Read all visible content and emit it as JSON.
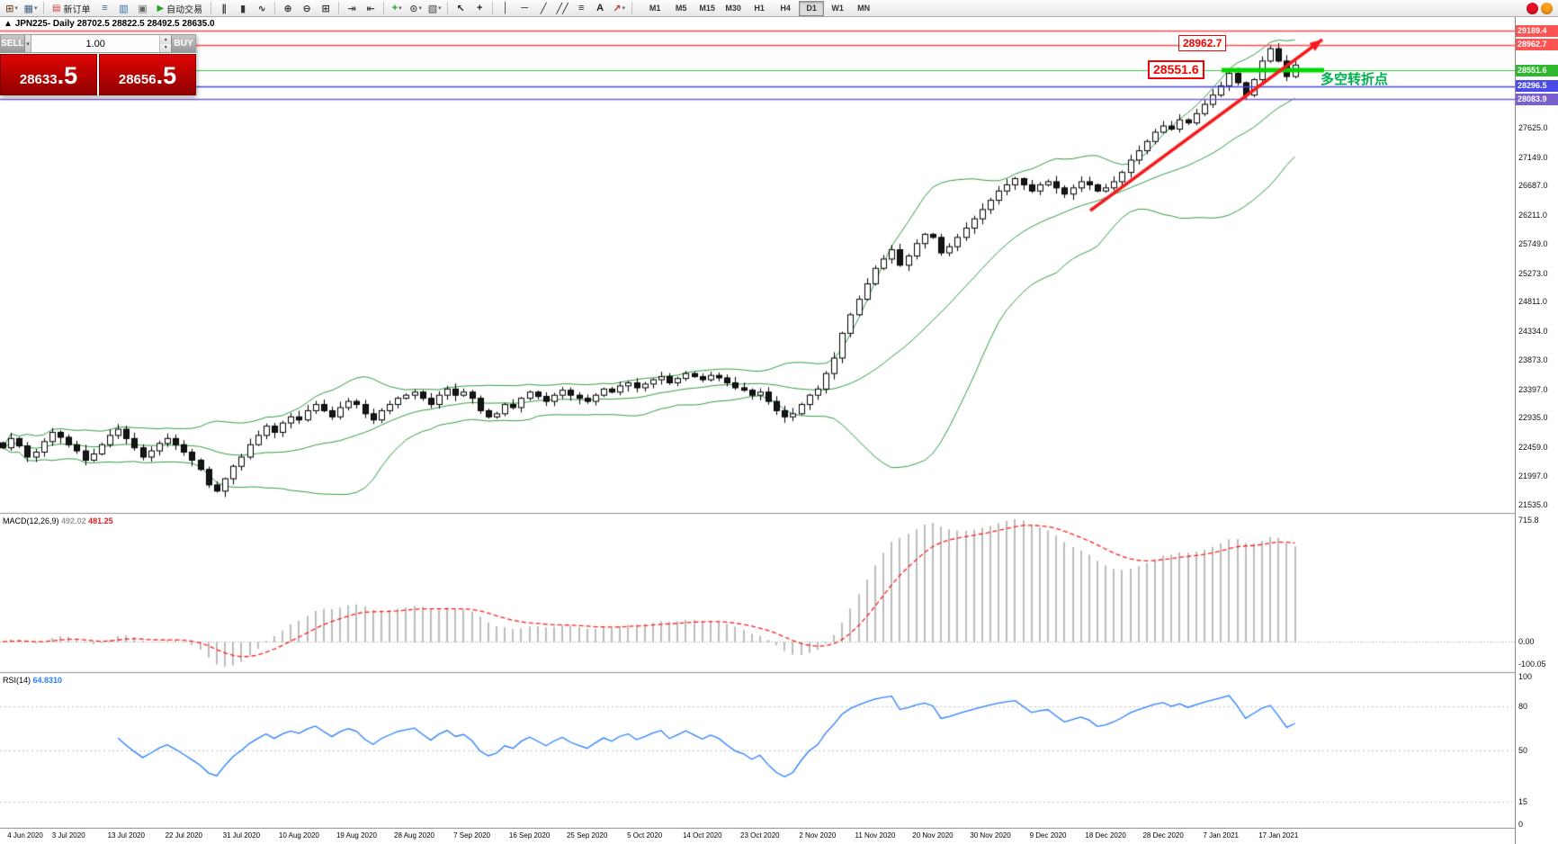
{
  "toolbar": {
    "items": [
      {
        "type": "icon",
        "name": "new-chart-icon",
        "glyph": "⊞",
        "color": "#7a5230",
        "caret": true
      },
      {
        "type": "icon",
        "name": "profiles-icon",
        "glyph": "▦",
        "color": "#44617e",
        "caret": true
      },
      {
        "type": "sep"
      },
      {
        "type": "button",
        "name": "new-order-button",
        "glyph": "▤",
        "glyph_color": "#cf3b3b",
        "label": "新订单"
      },
      {
        "type": "icon",
        "name": "market-watch-icon",
        "glyph": "≡",
        "color": "#2d6da3"
      },
      {
        "type": "icon",
        "name": "data-window-icon",
        "glyph": "▥",
        "color": "#2d6da3"
      },
      {
        "type": "icon",
        "name": "terminal-icon",
        "glyph": "▣",
        "color": "#666666"
      },
      {
        "type": "button",
        "name": "autotrading-button",
        "glyph": "▶",
        "glyph_color": "#27a327",
        "label": "自动交易"
      },
      {
        "type": "sep"
      },
      {
        "type": "icon",
        "name": "bar-chart-icon",
        "glyph": "∥",
        "color": "#333333"
      },
      {
        "type": "icon",
        "name": "candlestick-chart-icon",
        "glyph": "▮",
        "color": "#333333"
      },
      {
        "type": "icon",
        "name": "line-chart-icon",
        "glyph": "∿",
        "color": "#333333"
      },
      {
        "type": "sep"
      },
      {
        "type": "icon",
        "name": "zoom-in-icon",
        "glyph": "⊕",
        "color": "#333333"
      },
      {
        "type": "icon",
        "name": "zoom-out-icon",
        "glyph": "⊖",
        "color": "#333333"
      },
      {
        "type": "icon",
        "name": "tile-windows-icon",
        "glyph": "⊞",
        "color": "#333333"
      },
      {
        "type": "sep"
      },
      {
        "type": "icon",
        "name": "auto-scroll-icon",
        "glyph": "⇥",
        "color": "#444444"
      },
      {
        "type": "icon",
        "name": "chart-shift-icon",
        "glyph": "⇤",
        "color": "#444444"
      },
      {
        "type": "sep"
      },
      {
        "type": "icon",
        "name": "indicators-icon",
        "glyph": "+",
        "color": "#1e9e1e",
        "caret": true
      },
      {
        "type": "icon",
        "name": "periods-icon",
        "glyph": "⊙",
        "color": "#444444",
        "caret": true
      },
      {
        "type": "icon",
        "name": "templates-icon",
        "glyph": "▧",
        "color": "#444444",
        "caret": true
      },
      {
        "type": "sep"
      },
      {
        "type": "icon",
        "name": "cursor-icon",
        "glyph": "↖",
        "color": "#222222"
      },
      {
        "type": "icon",
        "name": "crosshair-icon",
        "glyph": "+",
        "color": "#222222"
      },
      {
        "type": "sep"
      },
      {
        "type": "icon",
        "name": "vertical-line-icon",
        "glyph": "│",
        "color": "#222222"
      },
      {
        "type": "icon",
        "name": "horizontal-line-icon",
        "glyph": "─",
        "color": "#222222"
      },
      {
        "type": "icon",
        "name": "trendline-icon",
        "glyph": "╱",
        "color": "#222222"
      },
      {
        "type": "icon",
        "name": "equidistant-channel-icon",
        "glyph": "╱╱",
        "color": "#222222"
      },
      {
        "type": "icon",
        "name": "fibonacci-icon",
        "glyph": "≡",
        "color": "#222222"
      },
      {
        "type": "icon",
        "name": "text-label-icon",
        "glyph": "A",
        "color": "#222222"
      },
      {
        "type": "icon",
        "name": "arrows-icon",
        "glyph": "↗",
        "color": "#bb3333",
        "caret": true
      },
      {
        "type": "sep"
      }
    ],
    "timeframes": [
      "M1",
      "M5",
      "M15",
      "M30",
      "H1",
      "H4",
      "D1",
      "W1",
      "MN"
    ],
    "active_timeframe": "D1",
    "badges": [
      {
        "name": "alert-badge-red",
        "color": "#e81123"
      },
      {
        "name": "alert-badge-orange",
        "color": "#ff9f1a"
      }
    ]
  },
  "chart": {
    "marker": "▲",
    "title_text": "JPN225- Daily 28702.5 28822.5 28492.5 28635.0",
    "levels": [
      {
        "price": 29189.4,
        "label": "29189.4",
        "line_color": "#ff4a4a",
        "line_width": 1.5,
        "tag_bg": "#ff5252"
      },
      {
        "price": 28962.7,
        "label": "28962.7",
        "line_color": "#ff4a4a",
        "line_width": 1.5,
        "tag_bg": "#ff5252"
      },
      {
        "price": 28551.6,
        "label": "28551.6",
        "line_color": "#37c837",
        "line_width": 1,
        "tag_bg": "#2eb82e"
      },
      {
        "price": 28296.5,
        "label": "28296.5",
        "line_color": "#4646e8",
        "line_width": 1.5,
        "tag_bg": "#4a4ae8"
      },
      {
        "price": 28083.9,
        "label": "28083.9",
        "line_color": "#7a5fd0",
        "line_width": 1.5,
        "tag_bg": "#7a5fd0"
      }
    ],
    "price_axis_gridlines": [
      "27625.0",
      "27149.0",
      "26687.0",
      "26211.0",
      "25749.0",
      "25273.0",
      "24811.0",
      "24334.0",
      "23873.0",
      "23397.0",
      "22935.0",
      "22459.0",
      "21997.0",
      "21535.0"
    ]
  },
  "trade_panel": {
    "sell_label": "SELL",
    "buy_label": "BUY",
    "volume": "1.00",
    "sell_price_main": "28633",
    "sell_price_pips": ".5",
    "buy_price_main": "28656",
    "buy_price_pips": ".5"
  },
  "annotations": {
    "resistance_label": "28962.7",
    "support_label": "28551.6",
    "turning_point_text": "多空转折点"
  },
  "indicators": {
    "macd": {
      "name_label": "MACD(12,26,9)",
      "value_main": "492.02",
      "value_signal": "481.25",
      "axis": {
        "top": "715.8",
        "zero": "0.00",
        "bottom": "-100.05"
      }
    },
    "rsi": {
      "name_label": "RSI(14)",
      "value": "64.8310",
      "axis": [
        "100",
        "80",
        "50",
        "15",
        "0"
      ],
      "levels": [
        80,
        50,
        15
      ]
    }
  },
  "chart_data": {
    "type": "candlestick",
    "symbol": "JPN225-",
    "period": "Daily",
    "visible_ohlc": {
      "open": 28702.5,
      "high": 28822.5,
      "low": 28492.5,
      "close": 28635.0
    },
    "overlays": [
      "Bollinger Bands (20,2)",
      "red trend arrow",
      "horizontal levels 29189.4 / 28962.7 / 28551.6 / 28296.5 / 28083.9"
    ],
    "dates": [
      "4 Jun 2020",
      "3 Jul 2020",
      "13 Jul 2020",
      "22 Jul 2020",
      "31 Jul 2020",
      "10 Aug 2020",
      "19 Aug 2020",
      "28 Aug 2020",
      "7 Sep 2020",
      "16 Sep 2020",
      "25 Sep 2020",
      "5 Oct 2020",
      "14 Oct 2020",
      "23 Oct 2020",
      "2 Nov 2020",
      "11 Nov 2020",
      "20 Nov 2020",
      "30 Nov 2020",
      "9 Dec 2020",
      "18 Dec 2020",
      "28 Dec 2020",
      "7 Jan 2021",
      "17 Jan 2021"
    ],
    "closes": [
      22450,
      22600,
      22480,
      22300,
      22380,
      22550,
      22700,
      22620,
      22500,
      22400,
      22250,
      22350,
      22500,
      22650,
      22750,
      22600,
      22450,
      22300,
      22400,
      22520,
      22600,
      22500,
      22380,
      22250,
      22100,
      21850,
      21750,
      21950,
      22150,
      22300,
      22500,
      22650,
      22800,
      22700,
      22850,
      22950,
      22900,
      23050,
      23150,
      23050,
      22950,
      23100,
      23200,
      23150,
      23000,
      22900,
      23050,
      23150,
      23250,
      23300,
      23350,
      23250,
      23150,
      23300,
      23400,
      23300,
      23350,
      23250,
      23050,
      22950,
      23000,
      23150,
      23100,
      23250,
      23350,
      23280,
      23200,
      23300,
      23380,
      23300,
      23250,
      23200,
      23300,
      23400,
      23350,
      23450,
      23500,
      23420,
      23480,
      23550,
      23600,
      23500,
      23570,
      23650,
      23600,
      23550,
      23620,
      23580,
      23500,
      23420,
      23380,
      23300,
      23350,
      23200,
      23050,
      22950,
      23000,
      23150,
      23300,
      23400,
      23650,
      23900,
      24300,
      24600,
      24850,
      25100,
      25350,
      25500,
      25650,
      25400,
      25550,
      25750,
      25900,
      25850,
      25600,
      25700,
      25850,
      26000,
      26150,
      26300,
      26450,
      26600,
      26700,
      26800,
      26700,
      26600,
      26700,
      26750,
      26650,
      26550,
      26650,
      26750,
      26700,
      26600,
      26650,
      26750,
      26900,
      27100,
      27250,
      27400,
      27550,
      27650,
      27600,
      27750,
      27700,
      27850,
      28000,
      28150,
      28300,
      28500,
      28350,
      28150,
      28400,
      28700,
      28900,
      28700,
      28450,
      28635
    ]
  }
}
